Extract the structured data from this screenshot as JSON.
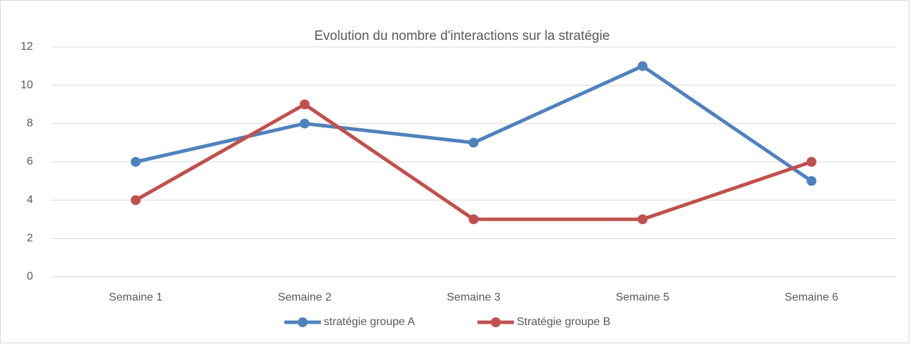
{
  "chart_data": {
    "type": "line",
    "title": "Evolution du nombre d'interactions sur la stratégie",
    "categories": [
      "Semaine 1",
      "Semaine 2",
      "Semaine 3",
      "Semaine 5",
      "Semaine 6"
    ],
    "series": [
      {
        "name": "stratégie groupe A",
        "color": "#4f81bd",
        "values": [
          6,
          8,
          7,
          11,
          5
        ]
      },
      {
        "name": "Stratégie groupe B",
        "color": "#c0504d",
        "values": [
          4,
          9,
          3,
          3,
          6
        ]
      }
    ],
    "ylim": [
      0,
      12
    ],
    "yticks": [
      0,
      2,
      4,
      6,
      8,
      10,
      12
    ],
    "grid": true,
    "legend": "bottom"
  }
}
